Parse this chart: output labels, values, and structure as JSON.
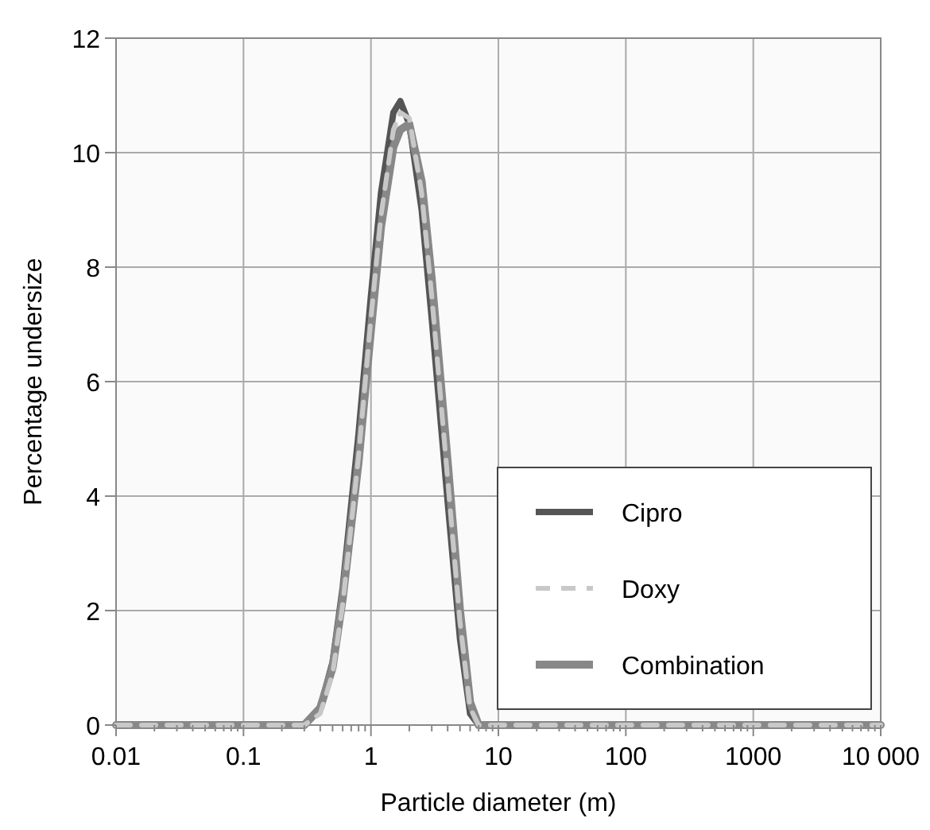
{
  "chart_data": {
    "type": "line",
    "xlabel": "Particle diameter (m)",
    "ylabel": "Percentage undersize",
    "log": "x",
    "x": [
      0.01,
      0.1,
      0.3,
      0.4,
      0.5,
      0.6,
      0.8,
      1,
      1.2,
      1.5,
      1.7,
      2,
      2.5,
      3,
      4,
      5,
      6,
      7,
      10,
      100,
      1000,
      10000
    ],
    "series": [
      {
        "name": "Cipro",
        "color": "#555555",
        "line_style": "solid",
        "values": [
          0,
          0,
          0,
          0.3,
          1.1,
          2.4,
          5.1,
          7.5,
          9.3,
          10.7,
          10.9,
          10.5,
          9.0,
          7.1,
          3.9,
          1.5,
          0.2,
          0,
          0,
          0,
          0,
          0
        ]
      },
      {
        "name": "Doxy",
        "color": "#c8c8c8",
        "line_style": "dashed",
        "values": [
          0,
          0,
          0,
          0.2,
          0.9,
          2.1,
          4.7,
          7.1,
          8.9,
          10.4,
          10.7,
          10.6,
          9.3,
          7.5,
          4.3,
          1.8,
          0.3,
          0,
          0,
          0,
          0,
          0
        ]
      },
      {
        "name": "Combination",
        "color": "#888888",
        "line_style": "solid",
        "values": [
          0,
          0,
          0,
          0.3,
          1.0,
          2.2,
          4.6,
          6.9,
          8.7,
          10.1,
          10.4,
          10.5,
          9.5,
          7.8,
          4.6,
          2.0,
          0.4,
          0,
          0,
          0,
          0,
          0
        ]
      }
    ],
    "xlim": [
      0.01,
      10000
    ],
    "xticks": [
      0.01,
      0.1,
      1,
      10,
      100,
      1000,
      {
        "value": 10000,
        "label": "10 000"
      }
    ],
    "ylim": [
      0,
      12
    ],
    "yticks": [
      0,
      2,
      4,
      6,
      8,
      10,
      12
    ],
    "grid": true,
    "legend": "bottom right"
  }
}
